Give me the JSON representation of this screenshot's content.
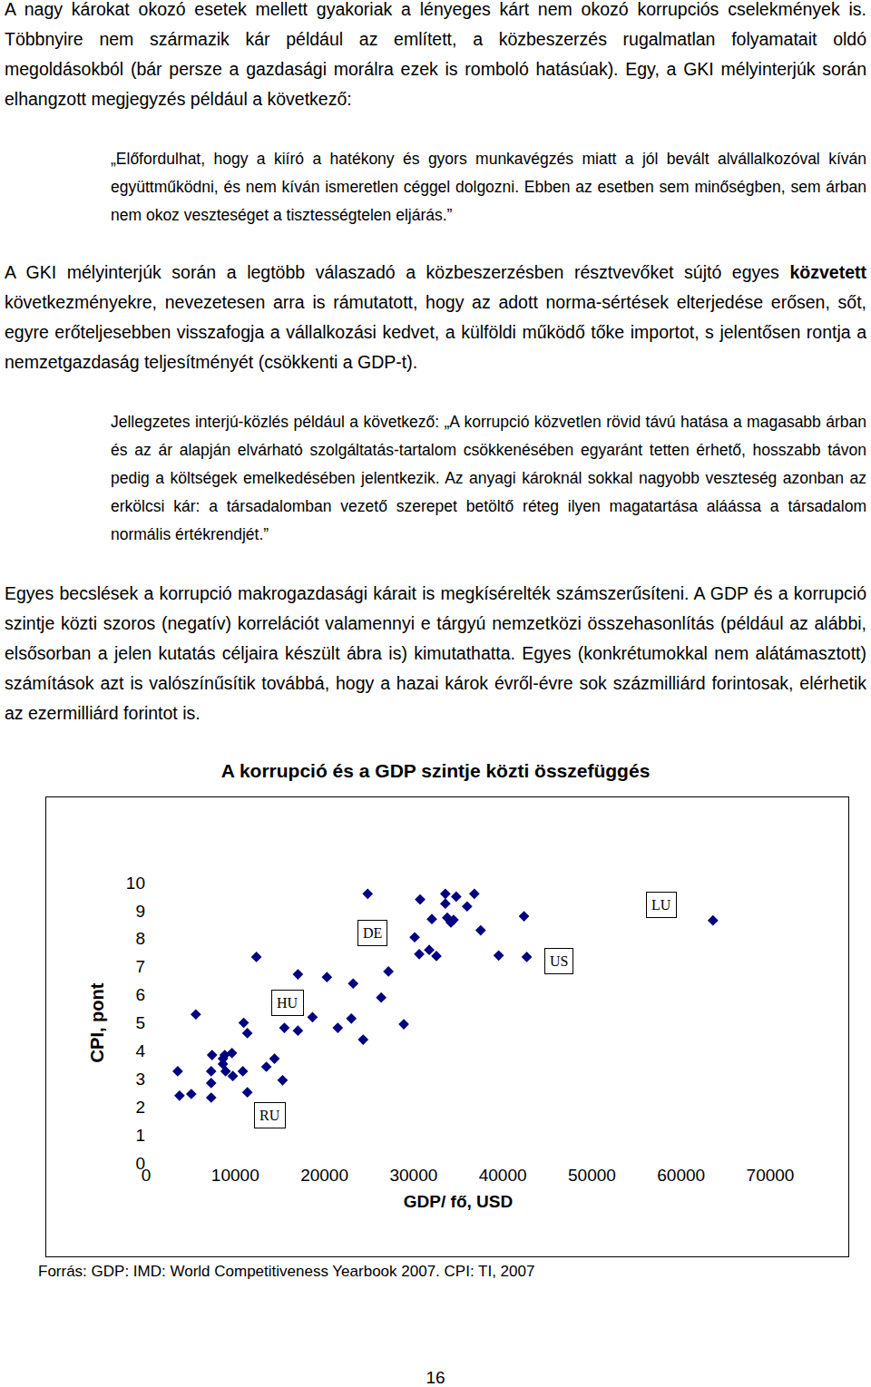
{
  "paragraph_1": "A nagy károkat okozó esetek mellett gyakoriak a lényeges kárt nem okozó korrupciós cselekmények is. Többnyire nem származik kár például az említett, a közbeszerzés rugalmatlan folyamatait oldó megoldásokból (bár persze a gazdasági morálra ezek is romboló hatásúak). Egy, a GKI mélyinterjúk során elhangzott megjegyzés például a következő:",
  "quote_1": "„Előfordulhat, hogy a kiíró a hatékony és gyors munkavégzés miatt a jól bevált alvállalkozóval kíván együttműködni, és nem kíván ismeretlen céggel dolgozni. Ebben az esetben sem minőségben, sem árban nem okoz veszteséget a tisztességtelen eljárás.”",
  "paragraph_2": [
    {
      "text": "A GKI mélyinterjúk során a legtöbb válaszadó a közbeszerzésben résztvevőket sújtó egyes "
    },
    {
      "text": "közvetett",
      "bold": true
    },
    {
      "text": " következményekre, nevezetesen arra is rámutatott, hogy az adott norma-sértések elterjedése erősen, sőt, egyre erőteljesebben visszafogja a vállalkozási kedvet, a külföldi működő tőke importot, s jelentősen rontja a nemzetgazdaság teljesítményét (csökkenti a GDP-t)."
    }
  ],
  "quote_2": "Jellegzetes interjú-közlés például a következő: „A korrupció közvetlen rövid távú hatása a magasabb árban és az ár alapján elvárható szolgáltatás-tartalom csökkenésében egyaránt tetten érhető, hosszabb távon pedig a költségek emelkedésében jelentkezik. Az anyagi károknál sokkal nagyobb veszteség azonban az erkölcsi kár: a társadalomban vezető szerepet betöltő réteg ilyen magatartása aláássa a társadalom normális értékrendjét.”",
  "paragraph_3": "Egyes becslések a korrupció makrogazdasági kárait is megkísérelték számszerűsíteni. A GDP és a korrupció szintje közti szoros (negatív) korrelációt valamennyi e tárgyú nemzetközi összehasonlítás (például az alábbi, elsősorban a jelen kutatás céljaira készült ábra is) kimutathatta. Egyes (konkrétumokkal nem alátámasztott) számítások azt is valószínűsítik továbbá, hogy a hazai károk évről-évre sok százmilliárd forintosak, elérhetik az ezermilliárd forintot is.",
  "chart_data": {
    "type": "scatter",
    "title": "A korrupció és a GDP szintje közti összefüggés",
    "x_label": "GDP/ fő, USD",
    "y_label": "CPI, pont",
    "marker": "diamond",
    "color": "#000080",
    "x": [
      3550,
      3750,
      5070,
      5580,
      7400,
      7300,
      7300,
      7300,
      8620,
      8820,
      8620,
      8920,
      9630,
      9730,
      10850,
      10950,
      11360,
      11360,
      12370,
      13490,
      14400,
      15310,
      15510,
      17030,
      17030,
      18660,
      20280,
      21500,
      23020,
      23220,
      24340,
      24850,
      26370,
      27180,
      28900,
      30120,
      30730,
      30630,
      31750,
      32050,
      32560,
      33560,
      33560,
      33770,
      34180,
      34480,
      34780,
      36000,
      36810,
      37520,
      39540,
      42380,
      42690,
      63570
    ],
    "values": [
      3.27,
      2.4,
      2.46,
      5.3,
      3.85,
      3.27,
      2.85,
      2.33,
      3.72,
      3.85,
      3.53,
      3.27,
      3.92,
      3.1,
      3.27,
      5.0,
      4.63,
      2.52,
      7.35,
      3.43,
      3.72,
      2.95,
      4.82,
      6.73,
      4.72,
      5.2,
      6.63,
      4.82,
      5.15,
      6.4,
      4.4,
      9.6,
      5.9,
      6.83,
      4.95,
      8.05,
      9.4,
      7.45,
      7.6,
      8.7,
      7.38,
      9.6,
      9.25,
      8.75,
      8.58,
      8.67,
      9.5,
      9.15,
      9.6,
      8.3,
      7.4,
      8.8,
      7.35,
      8.65
    ],
    "xlim": [
      0,
      70000
    ],
    "ylim": [
      0,
      10
    ],
    "xticks": [
      0,
      10000,
      20000,
      30000,
      40000,
      50000,
      60000,
      70000
    ],
    "yticks": [
      0,
      1,
      2,
      3,
      4,
      5,
      6,
      7,
      8,
      9,
      10
    ],
    "grid": false,
    "annotations": [
      {
        "text": "LU",
        "x": 57800,
        "y": 9.2
      },
      {
        "text": "US",
        "x": 46340,
        "y": 7.2
      },
      {
        "text": "DE",
        "x": 25350,
        "y": 8.2
      },
      {
        "text": "HU",
        "x": 15920,
        "y": 5.7
      },
      {
        "text": "RU",
        "x": 13890,
        "y": 1.7
      }
    ]
  },
  "source": "Forrás: GDP: IMD: World Competitiveness Yearbook 2007. CPI: TI, 2007",
  "page_number": "16"
}
